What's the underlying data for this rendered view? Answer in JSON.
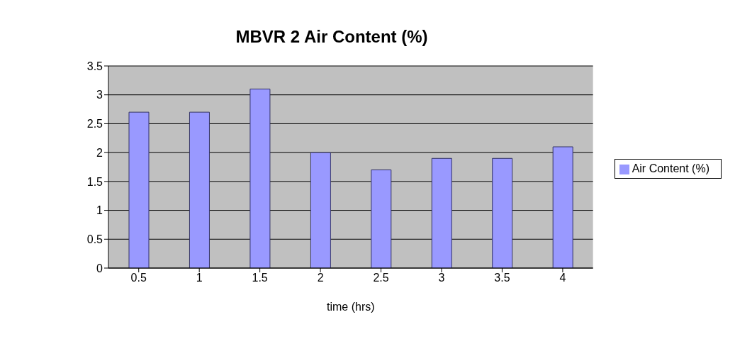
{
  "chart_data": {
    "type": "bar",
    "title": "MBVR 2 Air Content (%)",
    "xlabel": "time (hrs)",
    "categories": [
      "0.5",
      "1",
      "1.5",
      "2",
      "2.5",
      "3",
      "3.5",
      "4"
    ],
    "series": [
      {
        "name": "Air Content (%)",
        "color": "#9999ff",
        "values": [
          2.7,
          2.7,
          3.1,
          2.0,
          1.7,
          1.9,
          1.9,
          2.1
        ]
      }
    ],
    "ylim": [
      0,
      3.5
    ],
    "yticks": [
      0,
      0.5,
      1,
      1.5,
      2,
      2.5,
      3,
      3.5
    ],
    "grid": "y",
    "legend": "right"
  }
}
